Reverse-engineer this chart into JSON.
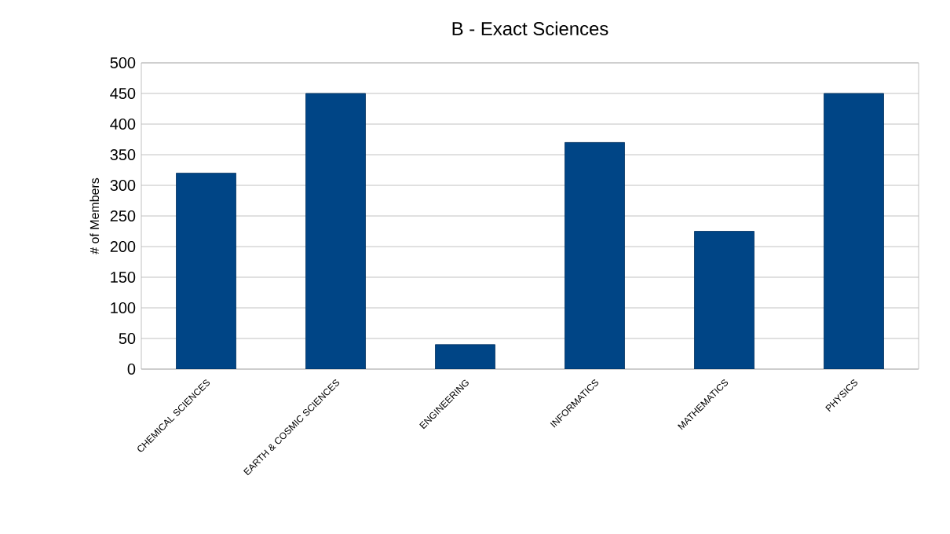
{
  "chart_data": {
    "type": "bar",
    "title": "B - Exact Sciences",
    "ylabel": "# of Members",
    "categories": [
      "CHEMICAL SCIENCES",
      "EARTH & COSMIC SCIENCES",
      "ENGINEERING",
      "INFORMATICS",
      "MATHEMATICS",
      "PHYSICS"
    ],
    "values": [
      320,
      450,
      40,
      370,
      225,
      450
    ],
    "color": "#004586",
    "ylim": [
      0,
      500
    ],
    "yticks": [
      0,
      50,
      100,
      150,
      200,
      250,
      300,
      350,
      400,
      450,
      500
    ],
    "grid": "y"
  }
}
